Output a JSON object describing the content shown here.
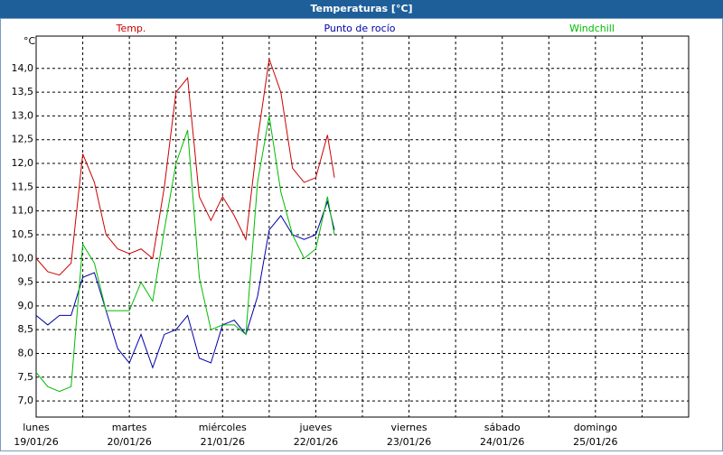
{
  "chart_data": {
    "type": "line",
    "title": "Temperaturas [°C]",
    "y_label": "°C",
    "xlim": [
      0,
      7
    ],
    "ylim": [
      6.66,
      14.68
    ],
    "xticks": [
      {
        "value": 0,
        "label": [
          "lunes",
          "19/01/26"
        ]
      },
      {
        "value": 1,
        "label": [
          "martes",
          "20/01/26"
        ]
      },
      {
        "value": 2,
        "label": [
          "miércoles",
          "21/01/26"
        ]
      },
      {
        "value": 3,
        "label": [
          "jueves",
          "22/01/26"
        ]
      },
      {
        "value": 4,
        "label": [
          "viernes",
          "23/01/26"
        ]
      },
      {
        "value": 5,
        "label": [
          "sábado",
          "24/01/26"
        ]
      },
      {
        "value": 6,
        "label": [
          "domingo",
          "25/01/26"
        ]
      }
    ],
    "yticks": [
      {
        "value": 7,
        "label": "7,0"
      },
      {
        "value": 7.5,
        "label": "7,5"
      },
      {
        "value": 8,
        "label": "8,0"
      },
      {
        "value": 8.5,
        "label": "8,5"
      },
      {
        "value": 9,
        "label": "9,0"
      },
      {
        "value": 9.5,
        "label": "9,5"
      },
      {
        "value": 10,
        "label": "10,0"
      },
      {
        "value": 10.5,
        "label": "10,5"
      },
      {
        "value": 11,
        "label": "11,0"
      },
      {
        "value": 11.5,
        "label": "11,5"
      },
      {
        "value": 12,
        "label": "12,0"
      },
      {
        "value": 12.5,
        "label": "12,5"
      },
      {
        "value": 13,
        "label": "13,0"
      },
      {
        "value": 13.5,
        "label": "13,5"
      },
      {
        "value": 14,
        "label": "14,0"
      }
    ],
    "grid": true,
    "x": [
      0,
      0.125,
      0.25,
      0.375,
      0.5,
      0.625,
      0.75,
      0.875,
      1,
      1.125,
      1.25,
      1.375,
      1.5,
      1.625,
      1.75,
      1.875,
      2,
      2.125,
      2.25,
      2.375,
      2.5,
      2.625,
      2.75,
      2.875,
      3,
      3.125,
      3.2
    ],
    "series": [
      {
        "name": "Temp.",
        "color": "#cc0000",
        "values": [
          10.0,
          9.72,
          9.65,
          9.9,
          12.2,
          11.6,
          10.5,
          10.2,
          10.1,
          10.2,
          10.0,
          11.5,
          13.5,
          13.8,
          11.3,
          10.8,
          11.3,
          10.9,
          10.4,
          12.5,
          14.2,
          13.5,
          11.9,
          11.6,
          11.7,
          12.6,
          11.7
        ]
      },
      {
        "name": "Punto de rocío",
        "color": "#0000aa",
        "values": [
          8.8,
          8.6,
          8.8,
          8.8,
          9.6,
          9.7,
          8.9,
          8.1,
          7.8,
          8.4,
          7.7,
          8.4,
          8.5,
          8.8,
          7.9,
          7.8,
          8.6,
          8.7,
          8.4,
          9.2,
          10.6,
          10.9,
          10.5,
          10.4,
          10.5,
          11.2,
          10.6
        ]
      },
      {
        "name": "Windchill",
        "color": "#00bb00",
        "values": [
          7.6,
          7.3,
          7.2,
          7.3,
          10.3,
          9.9,
          8.9,
          8.9,
          8.9,
          9.5,
          9.1,
          10.6,
          12.0,
          12.7,
          9.6,
          8.5,
          8.6,
          8.6,
          8.4,
          11.6,
          13.0,
          11.4,
          10.5,
          10.0,
          10.2,
          11.3,
          10.5
        ]
      }
    ]
  }
}
